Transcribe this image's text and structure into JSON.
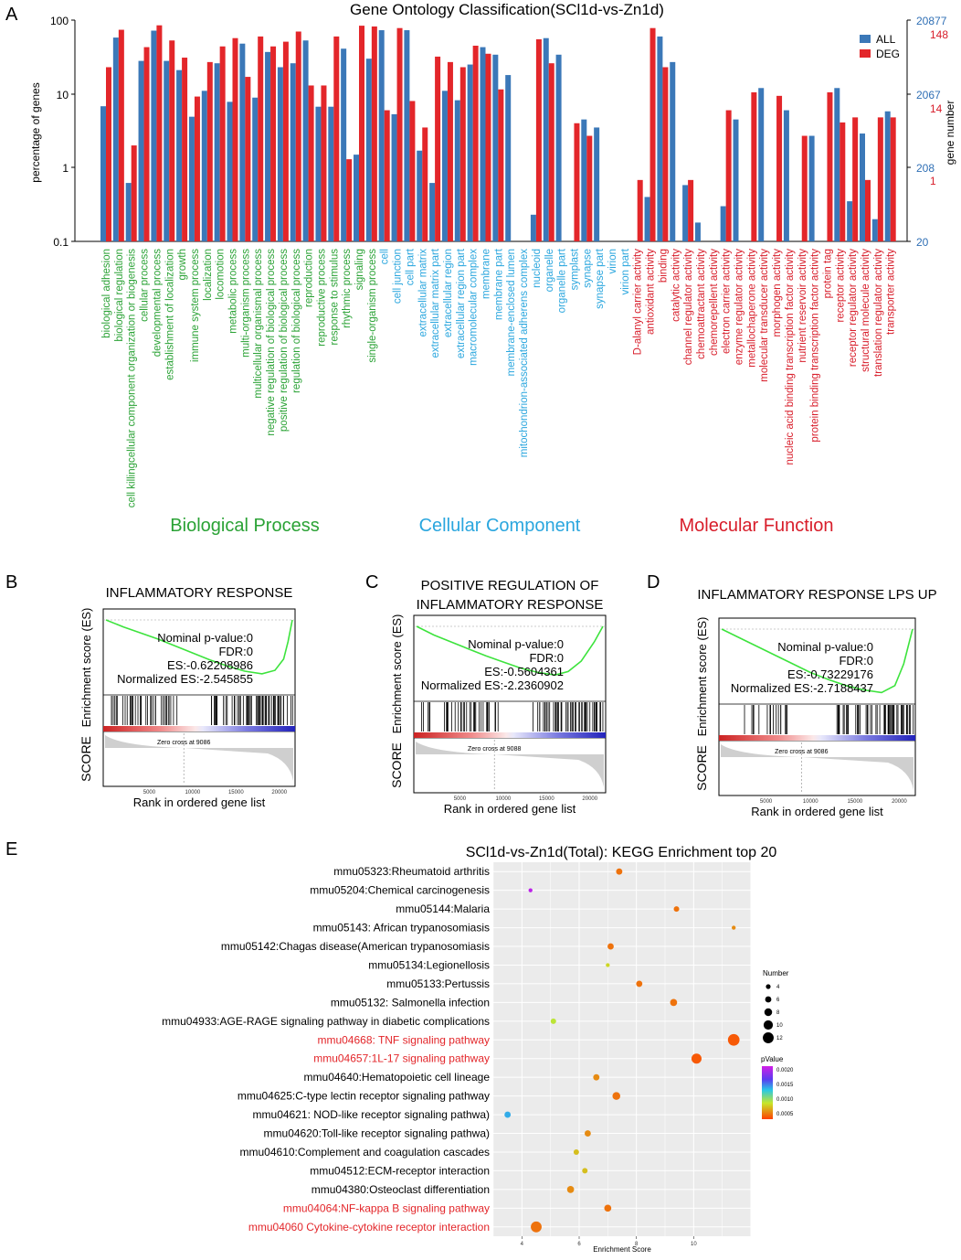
{
  "panel_labels": {
    "a": "A",
    "b": "B",
    "c": "C",
    "d": "D",
    "e": "E"
  },
  "colors": {
    "all": "#3b78b8",
    "deg": "#e3262a",
    "bp": "#2aa235",
    "cc": "#2aa6de",
    "mf": "#d81d2a",
    "es_curve": "#3de33d"
  },
  "go": {
    "title": "Gene Ontology Classification(SCl1d-vs-Zn1d)",
    "ylabel_left": "percentage of genes",
    "ylabel_right": "gene number",
    "left_ticks": [
      "100",
      "10",
      "1",
      "0.1"
    ],
    "right_ticks_all": [
      "20877",
      "2067",
      "208",
      "20"
    ],
    "right_ticks_deg": [
      "148",
      "14",
      "1"
    ],
    "legend": {
      "all": "ALL",
      "deg": "DEG"
    },
    "category_labels": {
      "bp": "Biological Process",
      "cc": "Cellular Component",
      "mf": "Molecular Function"
    }
  },
  "gsea": [
    {
      "title_lines": [
        "INFLAMMATORY RESPONSE"
      ],
      "stats": [
        "Nominal p-value:0",
        "FDR:0",
        "ES:-0.62208986",
        "Normalized ES:-2.545855"
      ],
      "ylabel": "Enrichment score (ES)",
      "score_label": "SCORE",
      "xlabel": "Rank in ordered gene list",
      "zero_cross": "Zero cross at 9086",
      "xticks": [
        "5000",
        "10000",
        "15000",
        "20000"
      ]
    },
    {
      "title_lines": [
        "POSITIVE REGULATION OF",
        "INFLAMMATORY RESPONSE"
      ],
      "stats": [
        "Nominal p-value:0",
        "FDR:0",
        "ES:-0.5604361",
        "Normalized ES:-2.2360902"
      ],
      "ylabel": "Enrichment score (ES)",
      "score_label": "SCORE",
      "xlabel": "Rank in ordered gene list",
      "zero_cross": "Zero cross at 9088",
      "xticks": [
        "5000",
        "10000",
        "15000",
        "20000"
      ]
    },
    {
      "title_lines": [
        "INFLAMMATORY RESPONSE LPS UP"
      ],
      "stats": [
        "Nominal p-value:0",
        "FDR:0",
        "ES:-0.73229176",
        "Normalized ES:-2.7188437"
      ],
      "ylabel": "Enrichment score (ES)",
      "score_label": "SCORE",
      "xlabel": "Rank in ordered gene list",
      "zero_cross": "Zero cross at 9086",
      "xticks": [
        "5000",
        "10000",
        "15000",
        "20000"
      ]
    }
  ],
  "kegg": {
    "title": "SCl1d-vs-Zn1d(Total): KEGG Enrichment top 20",
    "xlabel": "Enrichment Score",
    "size_legend_title": "Number",
    "size_legend_values": [
      "4",
      "6",
      "8",
      "10",
      "12"
    ],
    "color_legend_title": "pValue",
    "color_legend_ticks": [
      "0.0020",
      "0.0015",
      "0.0010",
      "0.0005"
    ]
  },
  "chart_data": [
    {
      "type": "bar",
      "title": "Gene Ontology Classification(SCl1d-vs-Zn1d)",
      "ylabel": "percentage of genes",
      "yscale": "log",
      "ylim": [
        0.1,
        100
      ],
      "categories": [
        {
          "label": "biological adhesion",
          "group": "bp"
        },
        {
          "label": "biological regulation",
          "group": "bp"
        },
        {
          "label": "cell killingcellular component organization or biogenesis",
          "group": "bp"
        },
        {
          "label": "cellular process",
          "group": "bp"
        },
        {
          "label": "developmental process",
          "group": "bp"
        },
        {
          "label": "establishment of localization",
          "group": "bp"
        },
        {
          "label": "growth",
          "group": "bp"
        },
        {
          "label": "immune system process",
          "group": "bp"
        },
        {
          "label": "localization",
          "group": "bp"
        },
        {
          "label": "locomotion",
          "group": "bp"
        },
        {
          "label": "metabolic process",
          "group": "bp"
        },
        {
          "label": "multi-organism process",
          "group": "bp"
        },
        {
          "label": "multicellular organismal process",
          "group": "bp"
        },
        {
          "label": "negative regulation of biological process",
          "group": "bp"
        },
        {
          "label": "positive regulation of biological process",
          "group": "bp"
        },
        {
          "label": "regulation of biological process",
          "group": "bp"
        },
        {
          "label": "reproduction",
          "group": "bp"
        },
        {
          "label": "reproductive process",
          "group": "bp"
        },
        {
          "label": "response to stimulus",
          "group": "bp"
        },
        {
          "label": "rhythmic process",
          "group": "bp"
        },
        {
          "label": "signaling",
          "group": "bp"
        },
        {
          "label": "single-organism process",
          "group": "bp"
        },
        {
          "label": "cell",
          "group": "cc"
        },
        {
          "label": "cell junction",
          "group": "cc"
        },
        {
          "label": "cell part",
          "group": "cc"
        },
        {
          "label": "extracellular matrix",
          "group": "cc"
        },
        {
          "label": "extracellular matrix part",
          "group": "cc"
        },
        {
          "label": "extracellular region",
          "group": "cc"
        },
        {
          "label": "extracellular region part",
          "group": "cc"
        },
        {
          "label": "macromolecular complex",
          "group": "cc"
        },
        {
          "label": "membrane",
          "group": "cc"
        },
        {
          "label": "membrane part",
          "group": "cc"
        },
        {
          "label": "membrane-enclosed lumen",
          "group": "cc"
        },
        {
          "label": "mitochondrion-associated adherens complex",
          "group": "cc"
        },
        {
          "label": "nucleoid",
          "group": "cc"
        },
        {
          "label": "organelle",
          "group": "cc"
        },
        {
          "label": "organelle part",
          "group": "cc"
        },
        {
          "label": "symplast",
          "group": "cc"
        },
        {
          "label": "synapse",
          "group": "cc"
        },
        {
          "label": "synapse part",
          "group": "cc"
        },
        {
          "label": "virion",
          "group": "cc"
        },
        {
          "label": "virion part",
          "group": "cc"
        },
        {
          "label": "D-alanyl carrier activity",
          "group": "mf"
        },
        {
          "label": "antioxidant activity",
          "group": "mf"
        },
        {
          "label": "binding",
          "group": "mf"
        },
        {
          "label": "catalytic activity",
          "group": "mf"
        },
        {
          "label": "channel regulator activity",
          "group": "mf"
        },
        {
          "label": "chemoattractant activity",
          "group": "mf"
        },
        {
          "label": "chemorepellent activity",
          "group": "mf"
        },
        {
          "label": "electron carrier activity",
          "group": "mf"
        },
        {
          "label": "enzyme regulator activity",
          "group": "mf"
        },
        {
          "label": "metallochaperone activity",
          "group": "mf"
        },
        {
          "label": "molecular transducer activity",
          "group": "mf"
        },
        {
          "label": "morphogen activity",
          "group": "mf"
        },
        {
          "label": "nucleic acid binding transcription factor activity",
          "group": "mf"
        },
        {
          "label": "nutrient reservoir activity",
          "group": "mf"
        },
        {
          "label": "protein binding transcription factor activity",
          "group": "mf"
        },
        {
          "label": "protein tag",
          "group": "mf"
        },
        {
          "label": "receptor activity",
          "group": "mf"
        },
        {
          "label": "receptor regulator activity",
          "group": "mf"
        },
        {
          "label": "structural molecule activity",
          "group": "mf"
        },
        {
          "label": "translation regulator activity",
          "group": "mf"
        },
        {
          "label": "transporter activity",
          "group": "mf"
        }
      ],
      "series": [
        {
          "name": "ALL",
          "values": [
            6.8,
            58,
            0.62,
            28,
            72,
            28,
            21,
            4.9,
            11,
            26,
            7.8,
            48,
            8.9,
            37,
            23,
            26,
            53,
            6.7,
            6.7,
            41,
            1.5,
            30,
            73,
            5.3,
            73,
            1.7,
            0.62,
            11,
            8.2,
            25,
            43,
            34,
            18,
            0.1,
            0.23,
            57,
            34,
            0.1,
            4.5,
            3.5,
            0.1,
            0.1,
            0.1,
            0.4,
            60,
            27,
            0.58,
            0.18,
            0.1,
            0.3,
            4.5,
            0.1,
            12,
            0.1,
            6,
            0.1,
            2.7,
            0.1,
            12,
            0.35,
            2.9,
            0.2,
            5.8
          ]
        },
        {
          "name": "DEG",
          "values": [
            23,
            74,
            2,
            43,
            85,
            53,
            31,
            9.2,
            27,
            44,
            57,
            17,
            60,
            44,
            51,
            70,
            13,
            13,
            60,
            1.3,
            84,
            82,
            6,
            78,
            8,
            3.5,
            32,
            27,
            23,
            45,
            35,
            11.5,
            0.1,
            0.1,
            55,
            26,
            0.1,
            4,
            2.7,
            0.1,
            0.1,
            0.1,
            0.68,
            78,
            23,
            0.1,
            0.68,
            0.1,
            0.1,
            6,
            0.1,
            10.5,
            0.1,
            9.4,
            0.1,
            2.7,
            0.1,
            10.5,
            4.1,
            4.8,
            0.68,
            4.8,
            4.8
          ]
        }
      ],
      "legend": [
        "ALL",
        "DEG"
      ],
      "right_axis": {
        "label": "gene number",
        "ALL": [
          20877,
          2067,
          208,
          20
        ],
        "DEG": [
          148,
          14,
          1
        ]
      }
    },
    {
      "type": "line",
      "title": "INFLAMMATORY RESPONSE",
      "ylabel": "Enrichment score (ES)",
      "xlabel": "Rank in ordered gene list",
      "x": [
        0,
        2000,
        4000,
        6000,
        8000,
        10000,
        12000,
        14000,
        16000,
        18000,
        19500,
        20500,
        21000,
        21500
      ],
      "values": [
        0.0,
        -0.08,
        -0.15,
        -0.22,
        -0.3,
        -0.38,
        -0.46,
        -0.53,
        -0.59,
        -0.62,
        -0.58,
        -0.45,
        -0.25,
        0.0
      ],
      "annotations": [
        "Nominal p-value:0",
        "FDR:0",
        "ES:-0.62208986",
        "Normalized ES:-2.545855",
        "Zero cross at 9086"
      ]
    },
    {
      "type": "line",
      "title": "POSITIVE REGULATION OF INFLAMMATORY RESPONSE",
      "ylabel": "Enrichment score (ES)",
      "xlabel": "Rank in ordered gene list",
      "x": [
        0,
        2000,
        4000,
        6000,
        8000,
        10000,
        12000,
        14000,
        16000,
        17500,
        19000,
        20500,
        21500
      ],
      "values": [
        0.0,
        -0.1,
        -0.18,
        -0.26,
        -0.34,
        -0.41,
        -0.48,
        -0.53,
        -0.56,
        -0.52,
        -0.4,
        -0.18,
        0.0
      ],
      "annotations": [
        "Nominal p-value:0",
        "FDR:0",
        "ES:-0.5604361",
        "Normalized ES:-2.2360902",
        "Zero cross at 9088"
      ]
    },
    {
      "type": "line",
      "title": "INFLAMMATORY RESPONSE LPS UP",
      "ylabel": "Enrichment score (ES)",
      "xlabel": "Rank in ordered gene list",
      "x": [
        0,
        2000,
        4000,
        6000,
        8000,
        10000,
        12000,
        14000,
        16000,
        18000,
        19500,
        20500,
        21500
      ],
      "values": [
        0.0,
        -0.1,
        -0.2,
        -0.3,
        -0.4,
        -0.5,
        -0.58,
        -0.65,
        -0.7,
        -0.73,
        -0.65,
        -0.4,
        0.0
      ],
      "annotations": [
        "Nominal p-value:0",
        "FDR:0",
        "ES:-0.73229176",
        "Normalized ES:-2.7188437",
        "Zero cross at 9086"
      ]
    },
    {
      "type": "scatter",
      "title": "SCl1d-vs-Zn1d(Total): KEGG Enrichment top 20",
      "xlabel": "Enrichment Score",
      "xlim": [
        3,
        12
      ],
      "xticks": [
        4,
        6,
        8,
        10
      ],
      "pvalue_range": [
        0.0,
        0.0022
      ],
      "points": [
        {
          "term": "mmu05323:Rheumatoid arthritis",
          "x": 7.4,
          "number": 6,
          "pvalue": 0.0002,
          "highlight": false
        },
        {
          "term": "mmu05204:Chemical carcinogenesis",
          "x": 4.3,
          "number": 3,
          "pvalue": 0.0021,
          "highlight": false
        },
        {
          "term": "mmu05144:Malaria",
          "x": 9.4,
          "number": 5,
          "pvalue": 0.0002,
          "highlight": false
        },
        {
          "term": "mmu05143: African trypanosomiasis",
          "x": 11.4,
          "number": 3,
          "pvalue": 0.0003,
          "highlight": false
        },
        {
          "term": "mmu05142:Chagas disease(American trypanosomiasis",
          "x": 7.1,
          "number": 6,
          "pvalue": 0.0002,
          "highlight": false
        },
        {
          "term": "mmu05134:Legionellosis",
          "x": 7.0,
          "number": 3,
          "pvalue": 0.0006,
          "highlight": false
        },
        {
          "term": "mmu05133:Pertussis",
          "x": 8.1,
          "number": 6,
          "pvalue": 0.0002,
          "highlight": false
        },
        {
          "term": "mmu05132: Salmonella infection",
          "x": 9.3,
          "number": 7,
          "pvalue": 0.0002,
          "highlight": false
        },
        {
          "term": "mmu04933:AGE-RAGE signaling pathway in diabetic complications",
          "x": 5.1,
          "number": 5,
          "pvalue": 0.0007,
          "highlight": false
        },
        {
          "term": "mmu04668: TNF signaling pathway",
          "x": 11.4,
          "number": 13,
          "pvalue": 0.0001,
          "highlight": true
        },
        {
          "term": "mmu04657:1L-17 signaling pathway",
          "x": 10.1,
          "number": 11,
          "pvalue": 0.0001,
          "highlight": true
        },
        {
          "term": "mmu04640:Hematopoietic cell lineage",
          "x": 6.6,
          "number": 6,
          "pvalue": 0.0003,
          "highlight": false
        },
        {
          "term": "mmu04625:C-type lectin receptor signaling pathway",
          "x": 7.3,
          "number": 8,
          "pvalue": 0.0002,
          "highlight": false
        },
        {
          "term": "mmu04621: NOD-like receptor signaling pathwa)",
          "x": 3.5,
          "number": 6,
          "pvalue": 0.0013,
          "highlight": false
        },
        {
          "term": "mmu04620:Toll-like receptor signaling pathwa)",
          "x": 6.3,
          "number": 6,
          "pvalue": 0.0003,
          "highlight": false
        },
        {
          "term": "mmu04610:Complement and coagulation cascades",
          "x": 5.9,
          "number": 5,
          "pvalue": 0.0005,
          "highlight": false
        },
        {
          "term": "mmu04512:ECM-receptor interaction",
          "x": 6.2,
          "number": 5,
          "pvalue": 0.0005,
          "highlight": false
        },
        {
          "term": "mmu04380:Osteoclast differentiation",
          "x": 5.7,
          "number": 7,
          "pvalue": 0.0003,
          "highlight": false
        },
        {
          "term": "mmu04064:NF-kappa B signaling pathway",
          "x": 7.0,
          "number": 7,
          "pvalue": 0.0002,
          "highlight": true
        },
        {
          "term": "mmu04060 Cytokine-cytokine receptor interaction",
          "x": 4.5,
          "number": 12,
          "pvalue": 0.0002,
          "highlight": true
        }
      ]
    }
  ]
}
